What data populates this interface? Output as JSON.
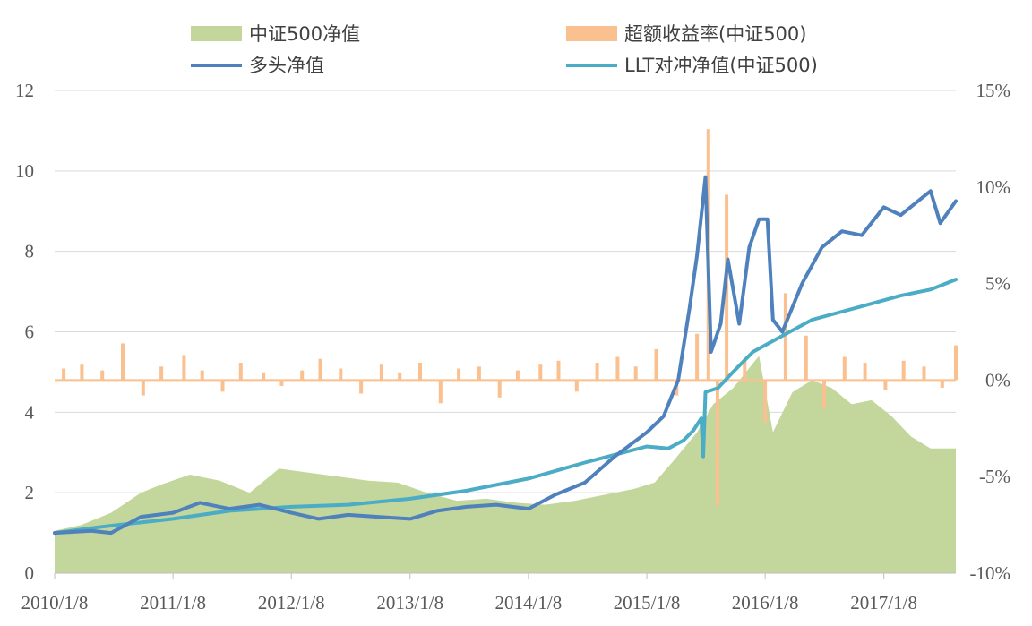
{
  "chart_data": {
    "type": "line",
    "title": "",
    "xlabel": "",
    "ylabel": "",
    "y_left_lim": [
      0,
      12
    ],
    "y_left_ticks": [
      "0",
      "2",
      "4",
      "6",
      "8",
      "10",
      "12"
    ],
    "y_right_lim": [
      -10,
      15
    ],
    "y_right_ticks": [
      "-10%",
      "-5%",
      "0%",
      "5%",
      "10%",
      "15%"
    ],
    "x_tick_labels": [
      "2010/1/8",
      "2011/1/8",
      "2012/1/8",
      "2013/1/8",
      "2014/1/8",
      "2015/1/8",
      "2016/1/8",
      "2017/1/8"
    ],
    "x_range": [
      "2010-01-08",
      "2017-08-18"
    ],
    "grid": true,
    "legend_position": "top",
    "series": [
      {
        "name": "中证500净值",
        "type": "area",
        "axis": "left",
        "color": "#c3d69b",
        "x": [
          "2010-01-08",
          "2010-04-01",
          "2010-07-01",
          "2010-10-01",
          "2010-12-01",
          "2011-03-01",
          "2011-06-01",
          "2011-09-01",
          "2011-12-01",
          "2012-03-01",
          "2012-06-01",
          "2012-09-01",
          "2012-12-01",
          "2013-03-01",
          "2013-06-01",
          "2013-09-01",
          "2013-12-01",
          "2014-03-01",
          "2014-06-01",
          "2014-09-01",
          "2014-12-01",
          "2015-02-01",
          "2015-04-01",
          "2015-06-12",
          "2015-08-01",
          "2015-10-01",
          "2015-12-20",
          "2016-02-01",
          "2016-04-01",
          "2016-06-01",
          "2016-08-01",
          "2016-10-01",
          "2016-12-01",
          "2017-02-01",
          "2017-04-01",
          "2017-06-01",
          "2017-08-18"
        ],
        "values": [
          1.05,
          1.2,
          1.5,
          2.0,
          2.2,
          2.45,
          2.3,
          2.0,
          2.6,
          2.5,
          2.4,
          2.3,
          2.25,
          2.0,
          1.8,
          1.85,
          1.75,
          1.7,
          1.8,
          1.95,
          2.1,
          2.25,
          2.8,
          3.5,
          4.2,
          4.6,
          5.4,
          3.5,
          4.5,
          4.8,
          4.6,
          4.2,
          4.3,
          3.9,
          3.4,
          3.1,
          3.1
        ]
      },
      {
        "name": "超额收益率(中证500)",
        "type": "bar",
        "axis": "right",
        "color": "#fac090",
        "x": [
          "2010-02-05",
          "2010-04-02",
          "2010-06-04",
          "2010-08-06",
          "2010-10-08",
          "2010-12-03",
          "2011-02-11",
          "2011-04-08",
          "2011-06-10",
          "2011-08-05",
          "2011-10-14",
          "2011-12-09",
          "2012-02-10",
          "2012-04-06",
          "2012-06-08",
          "2012-08-10",
          "2012-10-12",
          "2012-12-07",
          "2013-02-08",
          "2013-04-12",
          "2013-06-07",
          "2013-08-09",
          "2013-10-11",
          "2013-12-06",
          "2014-02-14",
          "2014-04-11",
          "2014-06-06",
          "2014-08-08",
          "2014-10-10",
          "2014-12-05",
          "2015-02-06",
          "2015-04-10",
          "2015-06-12",
          "2015-07-17",
          "2015-08-14",
          "2015-09-11",
          "2015-11-06",
          "2016-01-08",
          "2016-03-11",
          "2016-05-13",
          "2016-07-08",
          "2016-09-09",
          "2016-11-11",
          "2017-01-13",
          "2017-03-10",
          "2017-05-12",
          "2017-07-07",
          "2017-08-18"
        ],
        "values": [
          0.6,
          0.8,
          0.5,
          1.9,
          -0.8,
          0.7,
          1.3,
          0.5,
          -0.6,
          0.9,
          0.4,
          -0.3,
          0.5,
          1.1,
          0.6,
          -0.7,
          0.8,
          0.4,
          0.9,
          -1.2,
          0.6,
          0.7,
          -0.9,
          0.5,
          0.8,
          1.0,
          -0.6,
          0.9,
          1.2,
          0.7,
          1.6,
          -0.8,
          2.4,
          13.0,
          -6.5,
          9.6,
          1.1,
          -2.2,
          4.5,
          2.3,
          -1.5,
          1.2,
          0.9,
          -0.5,
          1.0,
          0.7,
          -0.4,
          1.8
        ]
      },
      {
        "name": "多头净值",
        "type": "line",
        "axis": "left",
        "color": "#4f81bd",
        "x": [
          "2010-01-08",
          "2010-05-01",
          "2010-07-01",
          "2010-10-01",
          "2011-01-08",
          "2011-04-01",
          "2011-07-01",
          "2011-10-01",
          "2012-01-08",
          "2012-04-01",
          "2012-07-01",
          "2012-10-01",
          "2013-01-08",
          "2013-04-01",
          "2013-07-01",
          "2013-10-01",
          "2014-01-08",
          "2014-04-01",
          "2014-07-01",
          "2014-10-01",
          "2015-01-08",
          "2015-03-01",
          "2015-04-15",
          "2015-05-20",
          "2015-06-12",
          "2015-07-08",
          "2015-07-25",
          "2015-08-24",
          "2015-09-15",
          "2015-10-20",
          "2015-11-20",
          "2015-12-20",
          "2016-01-15",
          "2016-02-01",
          "2016-03-01",
          "2016-05-01",
          "2016-07-01",
          "2016-09-01",
          "2016-11-01",
          "2017-01-08",
          "2017-03-01",
          "2017-05-01",
          "2017-06-01",
          "2017-07-01",
          "2017-08-18"
        ],
        "values": [
          1.0,
          1.05,
          1.0,
          1.4,
          1.5,
          1.75,
          1.6,
          1.7,
          1.5,
          1.35,
          1.45,
          1.4,
          1.35,
          1.55,
          1.65,
          1.7,
          1.6,
          1.95,
          2.25,
          2.9,
          3.5,
          3.9,
          4.8,
          6.6,
          7.9,
          9.85,
          5.5,
          6.2,
          7.8,
          6.2,
          8.1,
          8.8,
          8.8,
          6.3,
          6.0,
          7.2,
          8.1,
          8.5,
          8.4,
          9.1,
          8.9,
          9.3,
          9.5,
          8.7,
          9.25
        ]
      },
      {
        "name": "LLT对冲净值(中证500)",
        "type": "line",
        "axis": "left",
        "color": "#4bacc6",
        "x": [
          "2010-01-08",
          "2010-06-01",
          "2011-01-08",
          "2011-07-01",
          "2012-01-08",
          "2012-07-01",
          "2013-01-08",
          "2013-07-01",
          "2014-01-08",
          "2014-07-01",
          "2015-01-08",
          "2015-03-15",
          "2015-05-01",
          "2015-06-01",
          "2015-06-25",
          "2015-07-01",
          "2015-07-08",
          "2015-08-15",
          "2015-10-01",
          "2015-12-01",
          "2016-03-01",
          "2016-06-01",
          "2016-09-01",
          "2016-12-01",
          "2017-03-01",
          "2017-06-01",
          "2017-08-18"
        ],
        "values": [
          1.0,
          1.15,
          1.35,
          1.55,
          1.65,
          1.7,
          1.85,
          2.05,
          2.35,
          2.75,
          3.15,
          3.1,
          3.3,
          3.55,
          3.85,
          2.9,
          4.5,
          4.6,
          5.0,
          5.5,
          5.9,
          6.3,
          6.5,
          6.7,
          6.9,
          7.05,
          7.3
        ]
      }
    ]
  }
}
